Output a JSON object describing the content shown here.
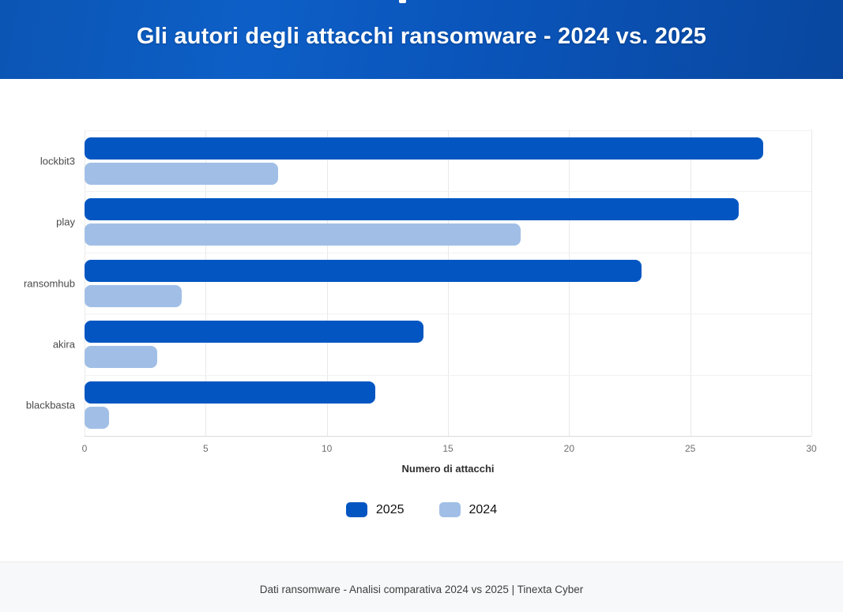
{
  "header": {
    "title": "Gli autori degli attacchi ransomware - 2024 vs. 2025"
  },
  "colors": {
    "header_gradient": [
      "#0b55b4",
      "#0d5fc7",
      "#09479f"
    ],
    "series_2025": "#0356c2",
    "series_2024": "#a1bfe6",
    "gridline": "#e9e9e9",
    "axis_line": "#d9d9d9",
    "footer_background": "#f7f8f9"
  },
  "chart_data": {
    "type": "bar",
    "orientation": "horizontal",
    "categories": [
      "lockbit3",
      "play",
      "ransomhub",
      "akira",
      "blackbasta"
    ],
    "series": [
      {
        "name": "2025",
        "color": "#0356c2",
        "values": [
          28,
          27,
          23,
          14,
          12
        ]
      },
      {
        "name": "2024",
        "color": "#a1bfe6",
        "values": [
          8,
          18,
          4,
          3,
          1
        ]
      }
    ],
    "xlabel": "Numero di attacchi",
    "ylabel": "",
    "xlim": [
      0,
      30
    ],
    "xticks": [
      0,
      5,
      10,
      15,
      20,
      25,
      30
    ],
    "grid": true,
    "legend_position": "bottom"
  },
  "footer": {
    "caption": "Dati ransomware - Analisi comparativa 2024 vs 2025 | Tinexta Cyber"
  }
}
